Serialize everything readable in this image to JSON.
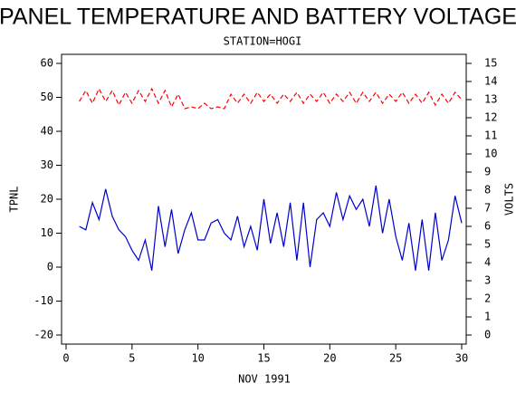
{
  "chart_data": {
    "type": "line",
    "title": "PANEL TEMPERATURE AND BATTERY VOLTAGE",
    "subtitle": "STATION=HOGI",
    "x_label": "NOV 1991",
    "y_label": "TPNL",
    "y2_label": "VOLTS",
    "x": [
      1,
      1.5,
      2,
      2.5,
      3,
      3.5,
      4,
      4.5,
      5,
      5.5,
      6,
      6.5,
      7,
      7.5,
      8,
      8.5,
      9,
      9.5,
      10,
      10.5,
      11,
      11.5,
      12,
      12.5,
      13,
      13.5,
      14,
      14.5,
      15,
      15.5,
      16,
      16.5,
      17,
      17.5,
      18,
      18.5,
      19,
      19.5,
      20,
      20.5,
      21,
      21.5,
      22,
      22.5,
      23,
      23.5,
      24,
      24.5,
      25,
      25.5,
      26,
      26.5,
      27,
      27.5,
      28,
      28.5,
      29,
      29.5,
      30
    ],
    "series": [
      {
        "name": "TPNL",
        "color": "#0000cc",
        "axis": "y",
        "values": [
          12,
          11,
          19,
          14,
          23,
          15,
          11,
          9,
          5,
          2,
          8,
          -1,
          18,
          6,
          17,
          4,
          11,
          16,
          8,
          8,
          13,
          14,
          10,
          8,
          15,
          6,
          12,
          5,
          20,
          7,
          16,
          6,
          19,
          2,
          19,
          0,
          14,
          16,
          12,
          22,
          14,
          21,
          17,
          20,
          12,
          24,
          10,
          20,
          9,
          2,
          13,
          -1,
          14,
          -1,
          16,
          2,
          8,
          21,
          13
        ]
      },
      {
        "name": "VOLTS",
        "color": "#ff0000",
        "axis": "y2",
        "values": [
          12.9,
          13.5,
          12.8,
          13.6,
          12.9,
          13.5,
          12.7,
          13.4,
          12.8,
          13.5,
          12.9,
          13.6,
          12.8,
          13.5,
          12.6,
          13.3,
          12.5,
          12.6,
          12.5,
          12.8,
          12.5,
          12.6,
          12.5,
          13.3,
          12.8,
          13.3,
          12.8,
          13.4,
          12.9,
          13.3,
          12.8,
          13.3,
          12.9,
          13.4,
          12.8,
          13.3,
          12.9,
          13.4,
          12.8,
          13.3,
          12.9,
          13.4,
          12.8,
          13.4,
          12.9,
          13.4,
          12.8,
          13.3,
          12.9,
          13.4,
          12.8,
          13.3,
          12.8,
          13.4,
          12.7,
          13.3,
          12.8,
          13.4,
          13.0
        ]
      }
    ],
    "xlim": [
      0,
      30
    ],
    "xticks": [
      0,
      5,
      10,
      15,
      20,
      25,
      30
    ],
    "ylim": [
      -20,
      60
    ],
    "yticks": [
      -20,
      -10,
      0,
      10,
      20,
      30,
      40,
      50,
      60
    ],
    "y2lim": [
      0,
      15
    ],
    "y2ticks": [
      0,
      1,
      2,
      3,
      4,
      5,
      6,
      7,
      8,
      9,
      10,
      11,
      12,
      13,
      14,
      15
    ]
  }
}
